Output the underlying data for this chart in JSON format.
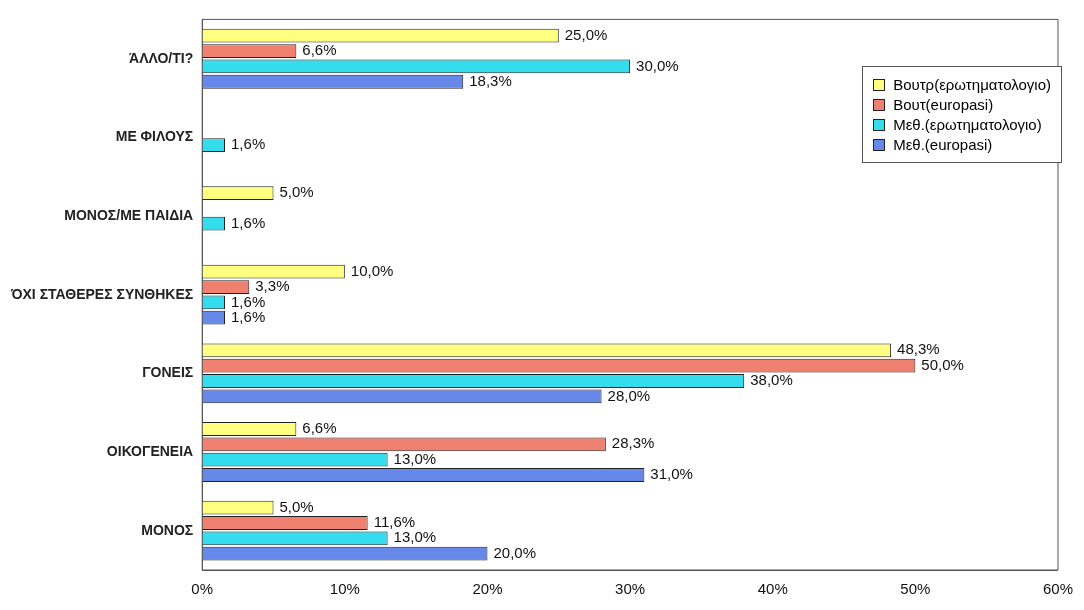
{
  "chart_data": {
    "type": "bar",
    "orientation": "horizontal",
    "categories": [
      "ΆΛΛΟ/ΤΙ?",
      "ΜΕ ΦΙΛΟΥΣ",
      "ΜΟΝΟΣ/ΜΕ ΠΑΙΔΙΑ",
      "ΌΧΙ ΣΤΑΘΕΡΕΣ ΣΥΝΘΗΚΕΣ",
      "ΓΟΝΕΙΣ",
      "ΟΙΚΟΓΕΝΕΙΑ",
      "ΜΟΝΟΣ"
    ],
    "series": [
      {
        "name": "Βουτρ(ερωτηματολογιο)",
        "color": "#ffff80",
        "values": [
          25.0,
          null,
          5.0,
          10.0,
          48.3,
          6.6,
          5.0
        ],
        "value_labels": [
          "25,0%",
          null,
          "5,0%",
          "10,0%",
          "48,3%",
          "6,6%",
          "5,0%"
        ]
      },
      {
        "name": "Βουτ(europasi)",
        "color": "#f08070",
        "values": [
          6.6,
          null,
          null,
          3.3,
          50.0,
          28.3,
          11.6
        ],
        "value_labels": [
          "6,6%",
          null,
          null,
          "3,3%",
          "50,0%",
          "28,3%",
          "11,6%"
        ]
      },
      {
        "name": "Μεθ.(ερωτηματολογιο)",
        "color": "#33ddee",
        "values": [
          30.0,
          1.6,
          1.6,
          1.6,
          38.0,
          13.0,
          13.0
        ],
        "value_labels": [
          "30,0%",
          "1,6%",
          "1,6%",
          "1,6%",
          "38,0%",
          "13,0%",
          "13,0%"
        ]
      },
      {
        "name": "Μεθ.(europasi)",
        "color": "#6688e8",
        "values": [
          18.3,
          null,
          null,
          1.6,
          28.0,
          31.0,
          20.0
        ],
        "value_labels": [
          "18,3%",
          null,
          null,
          "1,6%",
          "28,0%",
          "31,0%",
          "20,0%"
        ]
      }
    ],
    "xlim": [
      0,
      60
    ],
    "xticks": [
      {
        "value": 0,
        "label": "0%"
      },
      {
        "value": 10,
        "label": "10%"
      },
      {
        "value": 20,
        "label": "20%"
      },
      {
        "value": 30,
        "label": "30%"
      },
      {
        "value": 40,
        "label": "40%"
      },
      {
        "value": 50,
        "label": "50%"
      },
      {
        "value": 60,
        "label": "60%"
      }
    ],
    "grid": false,
    "legend": "top right"
  }
}
